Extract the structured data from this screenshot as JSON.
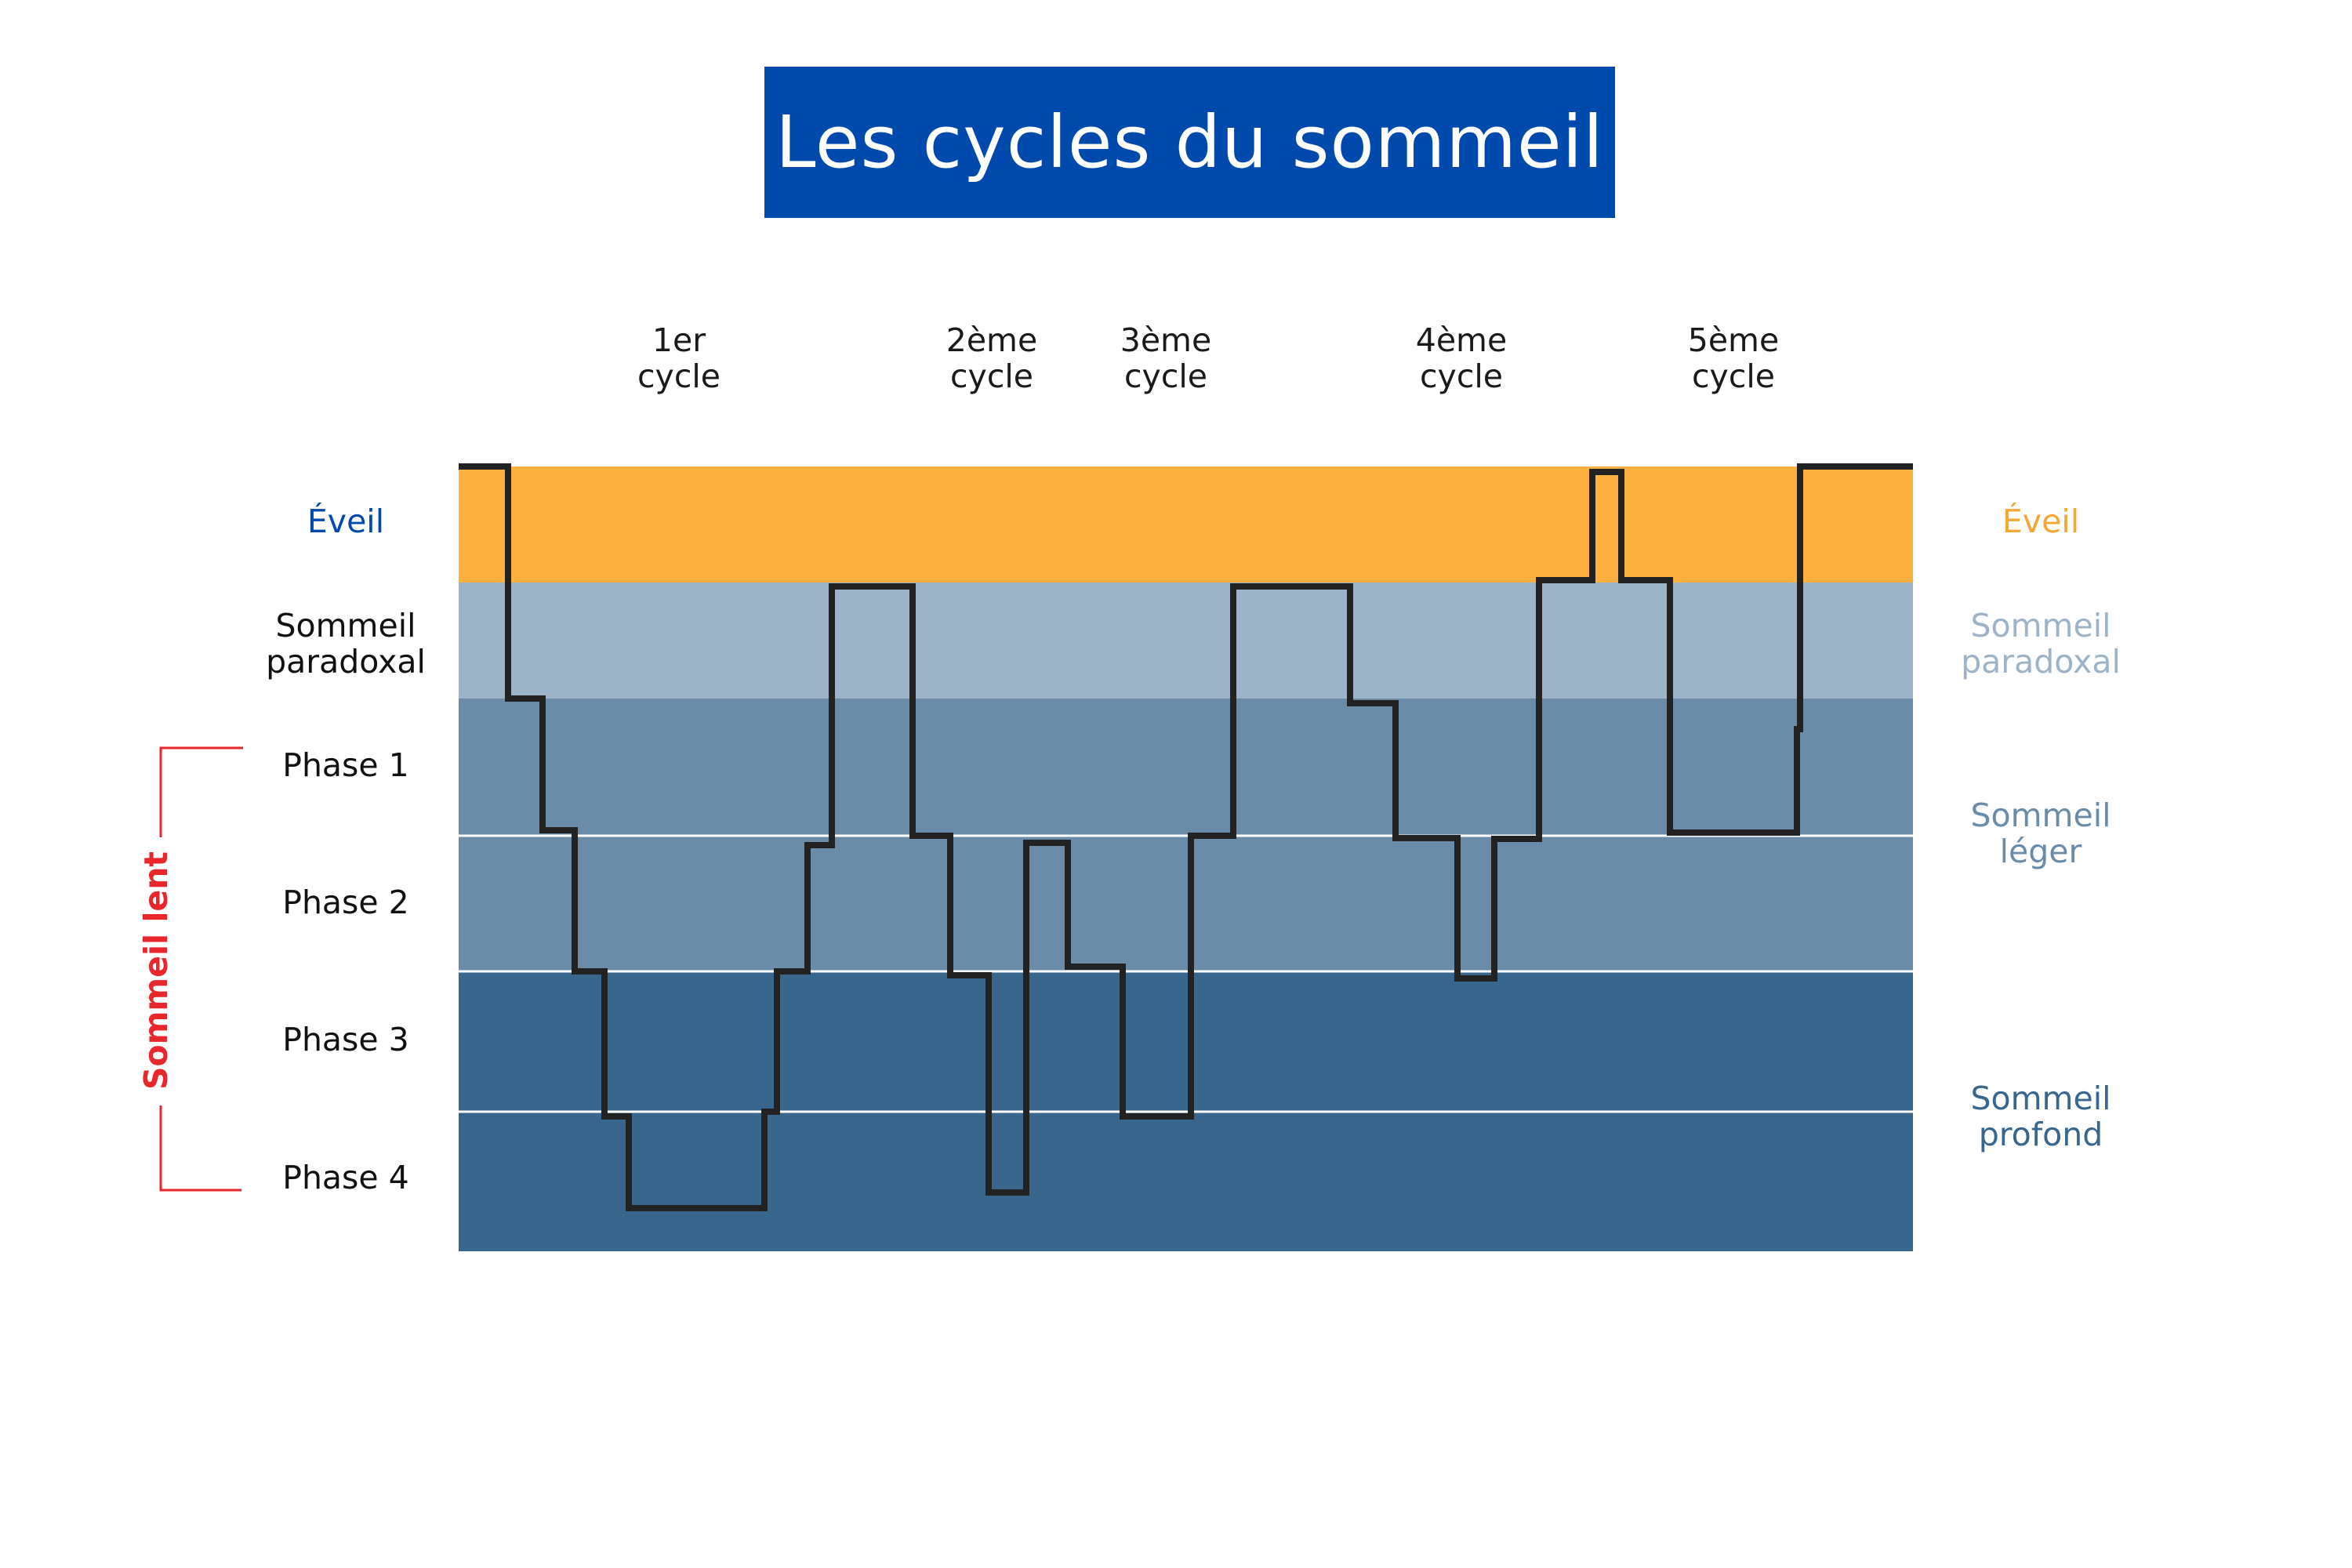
{
  "title": "Les cycles du sommeil",
  "colors": {
    "title_bg": "#0049ad",
    "eveil": "#fbb040",
    "paradoxal": "#9db3c8",
    "leger": "#6a8ca8",
    "profond": "#38668d",
    "hypnogram": "#222222",
    "sommeil_lent": "#e8262b",
    "label_eveil_left": "#0049ad",
    "label_eveil_right": "#f5a733",
    "label_paradoxal_right": "#9db3c8",
    "label_leger_right": "#6a8ca8",
    "label_profond_right": "#38668d"
  },
  "cycles": [
    {
      "line1": "1er",
      "line2": "cycle"
    },
    {
      "line1": "2ème",
      "line2": "cycle"
    },
    {
      "line1": "3ème",
      "line2": "cycle"
    },
    {
      "line1": "4ème",
      "line2": "cycle"
    },
    {
      "line1": "5ème",
      "line2": "cycle"
    }
  ],
  "left_labels": {
    "eveil": "Éveil",
    "paradoxal_1": "Sommeil",
    "paradoxal_2": "paradoxal",
    "phase1": "Phase 1",
    "phase2": "Phase 2",
    "phase3": "Phase 3",
    "phase4": "Phase 4",
    "sommeil_lent": "Sommeil lent"
  },
  "right_labels": {
    "eveil": "Éveil",
    "paradoxal_1": "Sommeil",
    "paradoxal_2": "paradoxal",
    "leger_1": "Sommeil",
    "leger_2": "léger",
    "profond_1": "Sommeil",
    "profond_2": "profond"
  },
  "hypnogram": {
    "stage_levels": [
      "Éveil",
      "Sommeil paradoxal",
      "Phase 1",
      "Phase 2",
      "Phase 3",
      "Phase 4"
    ]
  }
}
